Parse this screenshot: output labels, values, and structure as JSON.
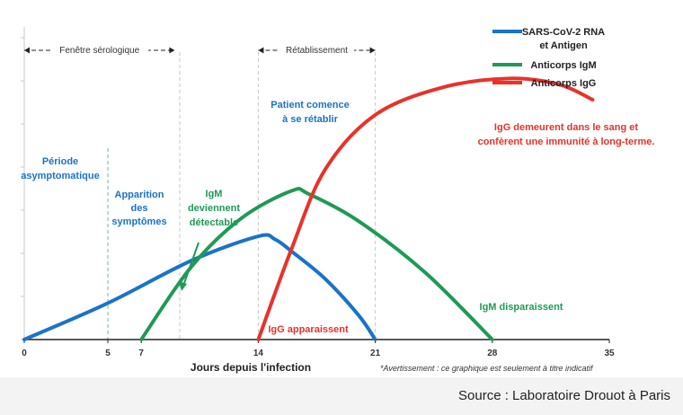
{
  "chart_data": {
    "type": "line",
    "xlabel": "Jours depuis l'infection",
    "ylabel": "",
    "xlim": [
      0,
      35
    ],
    "ylim": [
      0,
      100
    ],
    "xticks": [
      0,
      5,
      7,
      14,
      21,
      28,
      35
    ],
    "grid": false,
    "legend_position": "top-right",
    "series": [
      {
        "name": "SARS-CoV-2 RNA et Antigen",
        "name_lines": [
          "SARS-CoV-2 RNA",
          "et Antigen"
        ],
        "color": "#1a73c8",
        "points": [
          [
            0,
            0
          ],
          [
            5,
            12
          ],
          [
            10,
            26
          ],
          [
            14,
            34
          ],
          [
            15,
            33
          ],
          [
            16,
            29
          ],
          [
            18,
            20
          ],
          [
            20,
            8
          ],
          [
            21,
            0
          ]
        ]
      },
      {
        "name": "Anticorps IgM",
        "color": "#1e9a55",
        "points": [
          [
            7,
            0
          ],
          [
            10,
            24
          ],
          [
            13,
            40
          ],
          [
            16,
            49
          ],
          [
            17,
            48
          ],
          [
            20,
            39
          ],
          [
            24,
            22
          ],
          [
            28,
            0
          ]
        ]
      },
      {
        "name": "Anticorps IgG",
        "color": "#e8322a",
        "points": [
          [
            14,
            0
          ],
          [
            16,
            30
          ],
          [
            18,
            56
          ],
          [
            21,
            74
          ],
          [
            25,
            83
          ],
          [
            29,
            86
          ],
          [
            32,
            84
          ],
          [
            34,
            79
          ]
        ]
      }
    ],
    "periods": [
      {
        "label": "Fenêtre sérologique",
        "from": 0,
        "to": 9
      },
      {
        "label": "Rétablissement",
        "from": 14,
        "to": 21
      }
    ],
    "vlines": [
      5,
      9.3,
      14,
      21
    ],
    "annotations": {
      "periode": [
        "Période",
        "asymptomatique"
      ],
      "apparition": [
        "Apparition",
        "des",
        "symptômes"
      ],
      "igm_detect": [
        "IgM",
        "deviennent",
        "détectable"
      ],
      "patient": [
        "Patient comence",
        "à se rétablir"
      ],
      "igg_remain": [
        "IgG demeurent dans le sang et",
        "confèrent une immunité à long-terme."
      ],
      "igg_appear": "IgG apparaissent",
      "igm_disappear": "IgM disparaissent",
      "disclaimer": "*Avertissement : ce graphique est seulement à titre indicatif"
    },
    "annotation_colors": {
      "blue": "#1a73c8",
      "green": "#1e9a55",
      "red": "#e8322a"
    }
  },
  "footer": {
    "source": "Source : Laboratoire Drouot à Paris"
  }
}
